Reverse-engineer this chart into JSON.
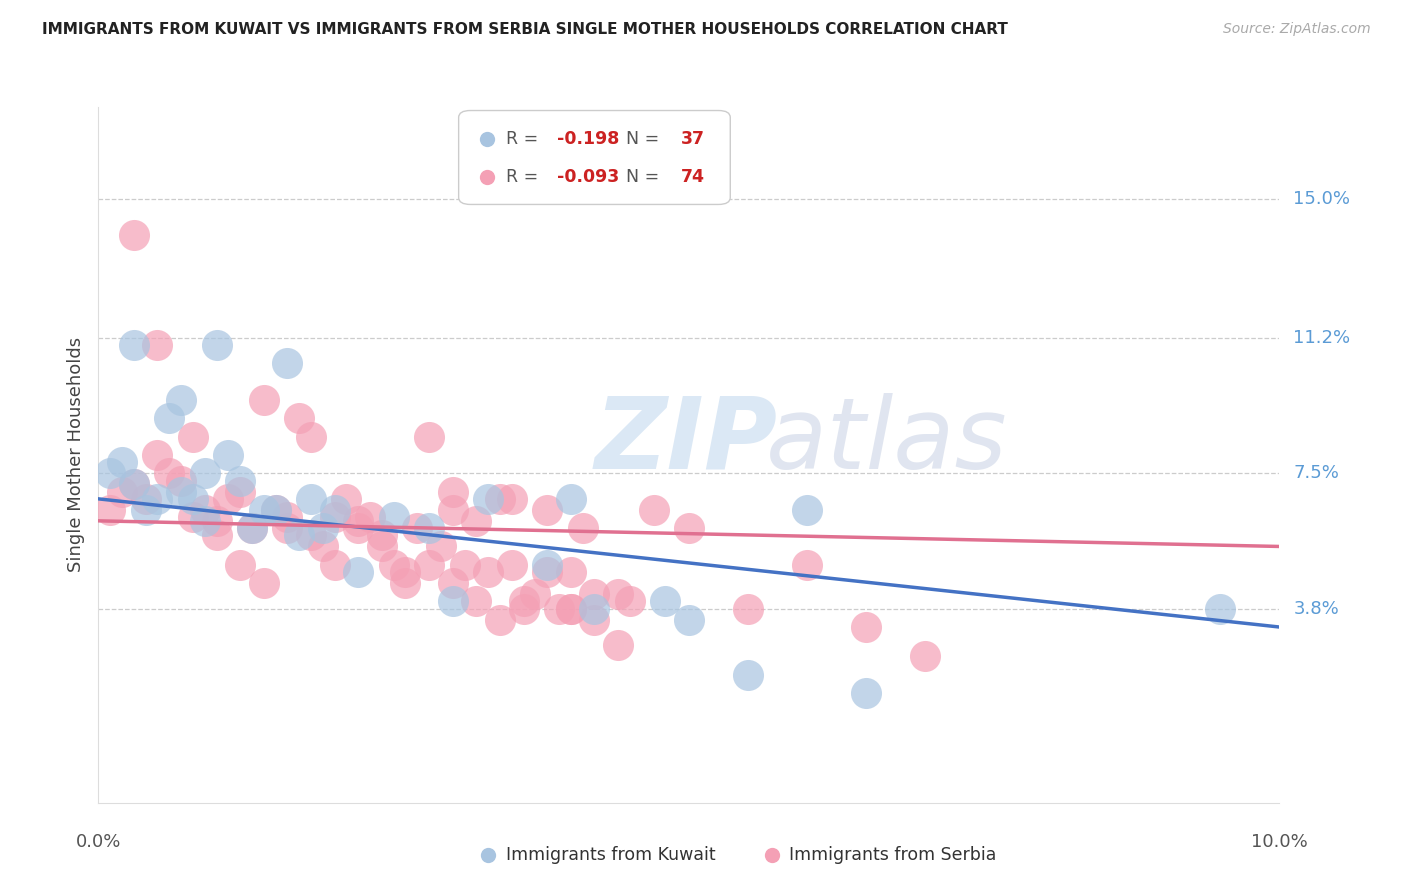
{
  "title": "IMMIGRANTS FROM KUWAIT VS IMMIGRANTS FROM SERBIA SINGLE MOTHER HOUSEHOLDS CORRELATION CHART",
  "source": "Source: ZipAtlas.com",
  "ylabel": "Single Mother Households",
  "ytick_labels": [
    "15.0%",
    "11.2%",
    "7.5%",
    "3.8%"
  ],
  "ytick_values": [
    0.15,
    0.112,
    0.075,
    0.038
  ],
  "xlim": [
    0.0,
    0.1
  ],
  "ylim": [
    -0.015,
    0.175
  ],
  "kuwait_R": -0.198,
  "kuwait_N": 37,
  "serbia_R": -0.093,
  "serbia_N": 74,
  "kuwait_color": "#a8c4e0",
  "serbia_color": "#f4a0b5",
  "kuwait_line_color": "#4472c4",
  "serbia_line_color": "#e07090",
  "watermark_zip": "ZIP",
  "watermark_atlas": "atlas",
  "legend_label_kuwait": "Immigrants from Kuwait",
  "legend_label_serbia": "Immigrants from Serbia",
  "kuwait_line_x0": 0.0,
  "kuwait_line_y0": 0.068,
  "kuwait_line_x1": 0.1,
  "kuwait_line_y1": 0.033,
  "serbia_line_x0": 0.0,
  "serbia_line_y0": 0.062,
  "serbia_line_x1": 0.1,
  "serbia_line_y1": 0.055,
  "kuwait_x": [
    0.001,
    0.002,
    0.003,
    0.004,
    0.005,
    0.006,
    0.007,
    0.008,
    0.009,
    0.01,
    0.011,
    0.012,
    0.013,
    0.014,
    0.015,
    0.016,
    0.017,
    0.018,
    0.019,
    0.02,
    0.022,
    0.025,
    0.028,
    0.03,
    0.033,
    0.038,
    0.04,
    0.042,
    0.048,
    0.05,
    0.055,
    0.06,
    0.065,
    0.007,
    0.009,
    0.095,
    0.003
  ],
  "kuwait_y": [
    0.075,
    0.078,
    0.072,
    0.065,
    0.068,
    0.09,
    0.07,
    0.068,
    0.062,
    0.11,
    0.08,
    0.073,
    0.06,
    0.065,
    0.065,
    0.105,
    0.058,
    0.068,
    0.06,
    0.065,
    0.048,
    0.063,
    0.06,
    0.04,
    0.068,
    0.05,
    0.068,
    0.038,
    0.04,
    0.035,
    0.02,
    0.065,
    0.015,
    0.095,
    0.075,
    0.038,
    0.11
  ],
  "serbia_x": [
    0.001,
    0.002,
    0.003,
    0.004,
    0.005,
    0.006,
    0.007,
    0.008,
    0.009,
    0.01,
    0.011,
    0.012,
    0.013,
    0.014,
    0.015,
    0.016,
    0.017,
    0.018,
    0.019,
    0.02,
    0.021,
    0.022,
    0.023,
    0.024,
    0.025,
    0.026,
    0.027,
    0.028,
    0.029,
    0.03,
    0.031,
    0.032,
    0.033,
    0.034,
    0.035,
    0.036,
    0.037,
    0.038,
    0.039,
    0.04,
    0.041,
    0.042,
    0.044,
    0.045,
    0.047,
    0.05,
    0.055,
    0.06,
    0.065,
    0.07,
    0.003,
    0.005,
    0.008,
    0.01,
    0.012,
    0.014,
    0.016,
    0.018,
    0.02,
    0.022,
    0.024,
    0.026,
    0.028,
    0.03,
    0.032,
    0.034,
    0.036,
    0.038,
    0.04,
    0.042,
    0.044,
    0.03,
    0.035,
    0.04
  ],
  "serbia_y": [
    0.065,
    0.07,
    0.072,
    0.068,
    0.08,
    0.075,
    0.073,
    0.085,
    0.065,
    0.062,
    0.068,
    0.07,
    0.06,
    0.095,
    0.065,
    0.06,
    0.09,
    0.085,
    0.055,
    0.05,
    0.068,
    0.062,
    0.063,
    0.058,
    0.05,
    0.045,
    0.06,
    0.085,
    0.055,
    0.065,
    0.05,
    0.062,
    0.048,
    0.068,
    0.05,
    0.04,
    0.042,
    0.065,
    0.038,
    0.038,
    0.06,
    0.035,
    0.042,
    0.04,
    0.065,
    0.06,
    0.038,
    0.05,
    0.033,
    0.025,
    0.14,
    0.11,
    0.063,
    0.058,
    0.05,
    0.045,
    0.063,
    0.058,
    0.063,
    0.06,
    0.055,
    0.048,
    0.05,
    0.045,
    0.04,
    0.035,
    0.038,
    0.048,
    0.048,
    0.042,
    0.028,
    0.07,
    0.068,
    0.038
  ]
}
